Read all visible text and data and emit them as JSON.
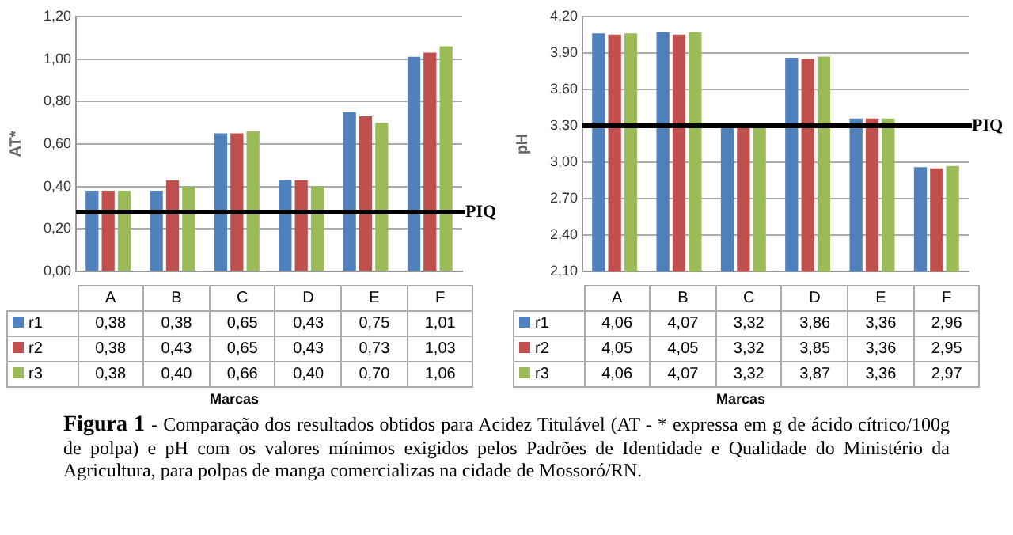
{
  "chart_data": [
    {
      "type": "bar",
      "ylabel": "AT*",
      "xlabel": "Marcas",
      "categories": [
        "A",
        "B",
        "C",
        "D",
        "E",
        "F"
      ],
      "series": [
        {
          "name": "r1",
          "color": "#4f81bd",
          "values": [
            0.38,
            0.38,
            0.65,
            0.43,
            0.75,
            1.01
          ],
          "value_labels": [
            "0,38",
            "0,38",
            "0,65",
            "0,43",
            "0,75",
            "1,01"
          ]
        },
        {
          "name": "r2",
          "color": "#c0504d",
          "values": [
            0.38,
            0.43,
            0.65,
            0.43,
            0.73,
            1.03
          ],
          "value_labels": [
            "0,38",
            "0,43",
            "0,65",
            "0,43",
            "0,73",
            "1,03"
          ]
        },
        {
          "name": "r3",
          "color": "#9bbb59",
          "values": [
            0.38,
            0.4,
            0.66,
            0.4,
            0.7,
            1.06
          ],
          "value_labels": [
            "0,38",
            "0,40",
            "0,66",
            "0,40",
            "0,70",
            "1,06"
          ]
        }
      ],
      "ylim": [
        0,
        1.2
      ],
      "yticks": [
        {
          "value": 0,
          "label": "0,00"
        },
        {
          "value": 0.2,
          "label": "0,20"
        },
        {
          "value": 0.4,
          "label": "0,40"
        },
        {
          "value": 0.6,
          "label": "0,60"
        },
        {
          "value": 0.8,
          "label": "0,80"
        },
        {
          "value": 1,
          "label": "1,00"
        },
        {
          "value": 1.2,
          "label": "1,20"
        }
      ],
      "grid": "y",
      "legend": "bottom left",
      "ref_lines": [
        {
          "axis": "y",
          "value": 0.28,
          "label": "PIQ",
          "color": "#000000"
        }
      ]
    },
    {
      "type": "bar",
      "ylabel": "pH",
      "xlabel": "Marcas",
      "categories": [
        "A",
        "B",
        "C",
        "D",
        "E",
        "F"
      ],
      "series": [
        {
          "name": "r1",
          "color": "#4f81bd",
          "values": [
            4.06,
            4.07,
            3.32,
            3.86,
            3.36,
            2.96
          ],
          "value_labels": [
            "4,06",
            "4,07",
            "3,32",
            "3,86",
            "3,36",
            "2,96"
          ]
        },
        {
          "name": "r2",
          "color": "#c0504d",
          "values": [
            4.05,
            4.05,
            3.32,
            3.85,
            3.36,
            2.95
          ],
          "value_labels": [
            "4,05",
            "4,05",
            "3,32",
            "3,85",
            "3,36",
            "2,95"
          ]
        },
        {
          "name": "r3",
          "color": "#9bbb59",
          "values": [
            4.06,
            4.07,
            3.32,
            3.87,
            3.36,
            2.97
          ],
          "value_labels": [
            "4,06",
            "4,07",
            "3,32",
            "3,87",
            "3,36",
            "2,97"
          ]
        }
      ],
      "ylim": [
        2.1,
        4.2
      ],
      "yticks": [
        {
          "value": 2.1,
          "label": "2,10"
        },
        {
          "value": 2.4,
          "label": "2,40"
        },
        {
          "value": 2.7,
          "label": "2,70"
        },
        {
          "value": 3,
          "label": "3,00"
        },
        {
          "value": 3.3,
          "label": "3,30"
        },
        {
          "value": 3.6,
          "label": "3,60"
        },
        {
          "value": 3.9,
          "label": "3,90"
        },
        {
          "value": 4.2,
          "label": "4,20"
        }
      ],
      "grid": "y",
      "legend": "bottom left",
      "ref_lines": [
        {
          "axis": "y",
          "value": 3.3,
          "label": "PIQ",
          "color": "#000000"
        }
      ],
      "annotations": [
        "Figura 1",
        "- Comparação dos resultados obtidos para Acidez Titulável (AT - * expressa em g de ácido cítrico/100g de polpa) e pH com os valores mínimos exigidos pelos Padrões de Identidade e Qualidade do Ministério da Agricultura, para polpas de manga comercializas na cidade de Mossoró/RN."
      ]
    }
  ]
}
